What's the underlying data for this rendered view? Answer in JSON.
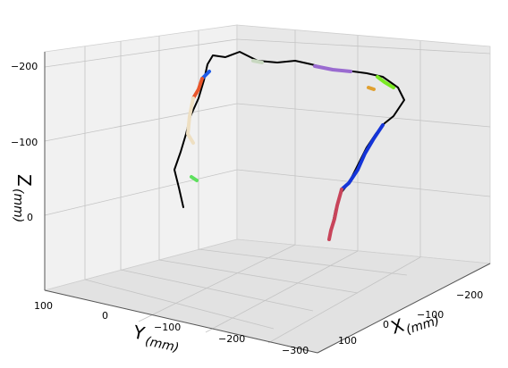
{
  "chart_data": {
    "type": "line3d",
    "axes": {
      "x": {
        "label": "X",
        "unit": "(mm)",
        "ticks": [
          "−200",
          "−100",
          "0",
          "100"
        ]
      },
      "y": {
        "label": "Y",
        "unit": "(mm)",
        "ticks": [
          "100",
          "0",
          "−100",
          "−200",
          "−300"
        ]
      },
      "z": {
        "label": "Z",
        "unit": "(mm)",
        "ticks": [
          "−200",
          "−100",
          "0"
        ]
      }
    },
    "grid": true,
    "panes": "light-gray",
    "series": [
      {
        "color": "#000000",
        "description": "main path",
        "points": [
          [
            205,
            232
          ],
          [
            200,
            210
          ],
          [
            195,
            190
          ],
          [
            202,
            170
          ],
          [
            208,
            150
          ],
          [
            213,
            130
          ],
          [
            222,
            110
          ],
          [
            228,
            90
          ],
          [
            232,
            72
          ],
          [
            238,
            62
          ],
          [
            252,
            64
          ],
          [
            268,
            58
          ],
          [
            288,
            68
          ],
          [
            310,
            70
          ],
          [
            330,
            68
          ],
          [
            348,
            72
          ],
          [
            372,
            78
          ],
          [
            395,
            80
          ],
          [
            410,
            82
          ],
          [
            428,
            86
          ],
          [
            445,
            98
          ],
          [
            452,
            112
          ],
          [
            440,
            130
          ],
          [
            430,
            138
          ],
          [
            420,
            150
          ],
          [
            410,
            165
          ],
          [
            400,
            185
          ],
          [
            390,
            205
          ],
          [
            382,
            215
          ],
          [
            375,
            235
          ],
          [
            372,
            250
          ],
          [
            368,
            265
          ]
        ]
      },
      {
        "color": "#1434d8",
        "points": [
          [
            428,
            140
          ],
          [
            418,
            155
          ],
          [
            408,
            172
          ],
          [
            400,
            190
          ],
          [
            390,
            205
          ],
          [
            382,
            212
          ]
        ]
      },
      {
        "color": "#1f5ce8",
        "points": [
          [
            226,
            88
          ],
          [
            234,
            80
          ]
        ]
      },
      {
        "color": "#c8445a",
        "points": [
          [
            382,
            212
          ],
          [
            377,
            230
          ],
          [
            374,
            245
          ],
          [
            370,
            258
          ],
          [
            368,
            268
          ]
        ]
      },
      {
        "color": "#e8552a",
        "points": [
          [
            226,
            88
          ],
          [
            222,
            100
          ],
          [
            216,
            110
          ]
        ]
      },
      {
        "color": "#eedfc2",
        "points": [
          [
            216,
            110
          ],
          [
            212,
            130
          ],
          [
            210,
            150
          ],
          [
            216,
            160
          ]
        ]
      },
      {
        "color": "#9a6bd0",
        "points": [
          [
            352,
            74
          ],
          [
            372,
            78
          ],
          [
            392,
            80
          ]
        ]
      },
      {
        "color": "#7be823",
        "points": [
          [
            422,
            86
          ],
          [
            430,
            92
          ],
          [
            440,
            98
          ]
        ]
      },
      {
        "color": "#c8d8c0",
        "points": [
          [
            283,
            68
          ],
          [
            293,
            70
          ]
        ]
      },
      {
        "color": "#e0a030",
        "points": [
          [
            412,
            98
          ],
          [
            418,
            100
          ]
        ]
      },
      {
        "color": "#5ee05e",
        "points": [
          [
            214,
            198
          ],
          [
            220,
            202
          ]
        ]
      }
    ]
  }
}
